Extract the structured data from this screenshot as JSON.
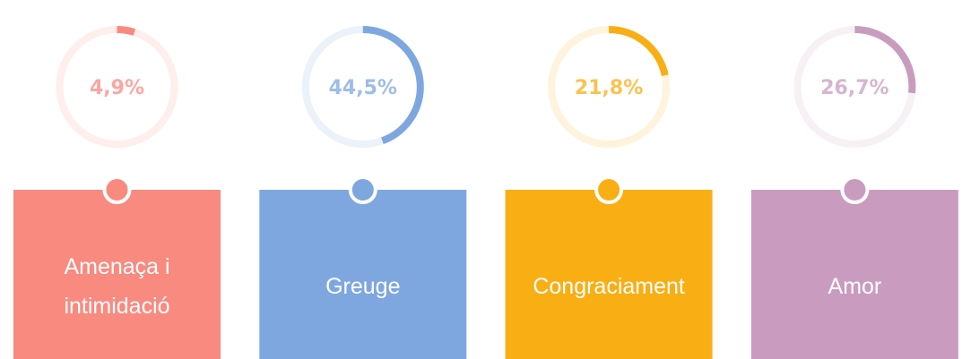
{
  "chart_data": {
    "type": "progress-ring",
    "categories": [
      "Amenaça i intimidació",
      "Greuge",
      "Congraciament",
      "Amor"
    ],
    "values": [
      4.9,
      44.5,
      21.8,
      26.7
    ],
    "value_labels": [
      "4,9%",
      "44,5%",
      "21,8%",
      "26,7%"
    ],
    "colors": [
      "#f88a80",
      "#7ea7e0",
      "#f9ae14",
      "#c99cbf"
    ],
    "ylim": [
      0,
      100
    ]
  }
}
